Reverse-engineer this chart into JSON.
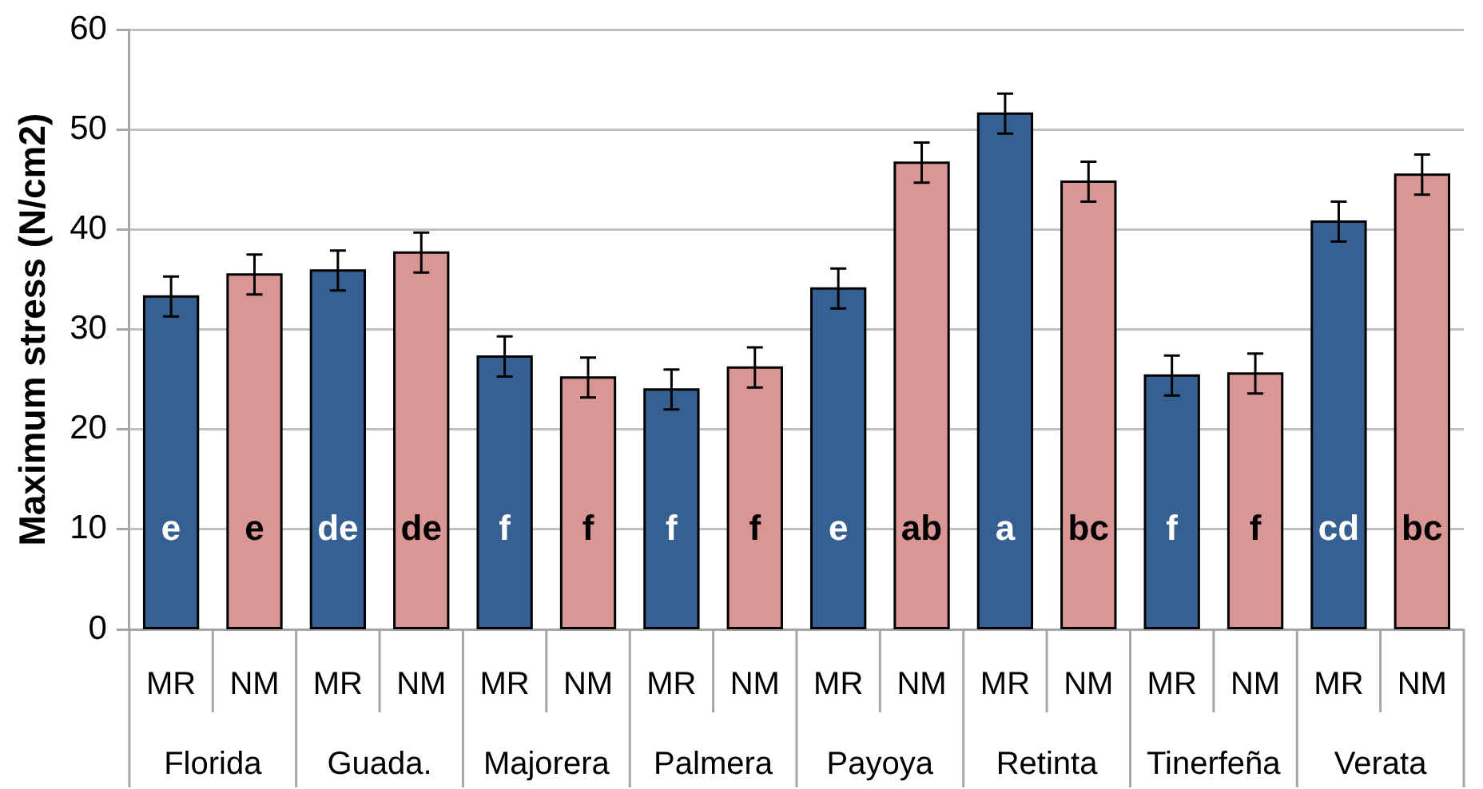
{
  "chart_data": {
    "type": "bar",
    "ylabel": "Maximum stress (N/cm2)",
    "categories": [
      "Florida",
      "Guada.",
      "Majorera",
      "Palmera",
      "Payoya",
      "Retinta",
      "Tinerfeña",
      "Verata"
    ],
    "series": [
      {
        "name": "MR",
        "color": "#376092",
        "values": [
          33.3,
          35.9,
          27.3,
          24.0,
          34.1,
          51.6,
          25.4,
          40.8
        ],
        "errors": [
          2,
          2,
          2,
          2,
          2,
          2,
          2,
          2
        ],
        "value_labels": [
          "e",
          "de",
          "f",
          "f",
          "e",
          "a",
          "f",
          "cd"
        ]
      },
      {
        "name": "NM",
        "color": "#d99694",
        "values": [
          35.5,
          37.7,
          25.2,
          26.2,
          46.7,
          44.8,
          25.6,
          45.5
        ],
        "errors": [
          2,
          2,
          2,
          2,
          2,
          2,
          2,
          2
        ],
        "value_labels": [
          "e",
          "de",
          "f",
          "f",
          "ab",
          "bc",
          "f",
          "bc"
        ]
      }
    ],
    "ylim": [
      0,
      60
    ],
    "yticks": [
      0,
      10,
      20,
      30,
      40,
      50,
      60
    ],
    "grid": "y"
  }
}
